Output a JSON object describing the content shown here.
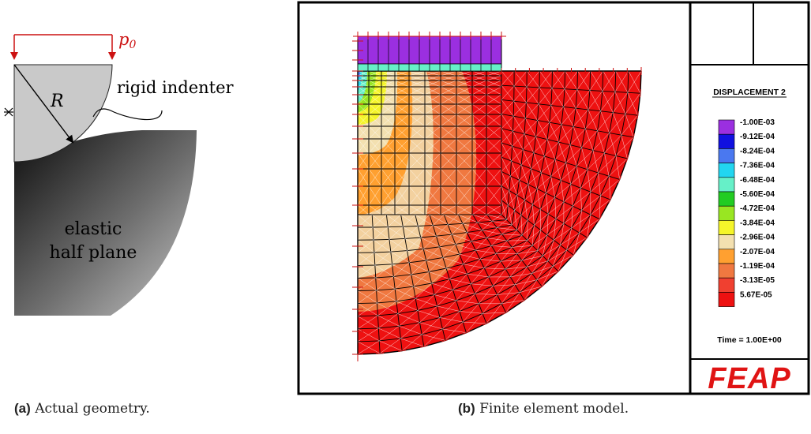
{
  "panel_a": {
    "load_label": "p",
    "load_subscript": "0",
    "radius_label": "R",
    "indenter_label": "rigid indenter",
    "half_plane_label_line1": "elastic",
    "half_plane_label_line2": "half plane",
    "caption_tag": "(a)",
    "caption_text": "Actual geometry.",
    "colors": {
      "load": "#cc1111",
      "indenter": "#c9c9c9"
    }
  },
  "panel_b": {
    "legend_title": "DISPLACEMENT 2",
    "legend_values": [
      "-1.00E-03",
      "-9.12E-04",
      "-8.24E-04",
      "-7.36E-04",
      "-6.48E-04",
      "-5.60E-04",
      "-4.72E-04",
      "-3.84E-04",
      "-2.96E-04",
      "-2.07E-04",
      "-1.19E-04",
      "-3.13E-05",
      "5.67E-05"
    ],
    "legend_colors": [
      "#9b2fe0",
      "#1010e0",
      "#4a78f0",
      "#22d6f0",
      "#66f0c8",
      "#22cc22",
      "#99e622",
      "#f5f52a",
      "#f3e0b0",
      "#ffa030",
      "#f07840",
      "#f04030",
      "#ee1111"
    ],
    "time_label": "Time = 1.00E+00",
    "logo": "FEAP",
    "caption_tag": "(b)",
    "caption_text": "Finite element model."
  }
}
